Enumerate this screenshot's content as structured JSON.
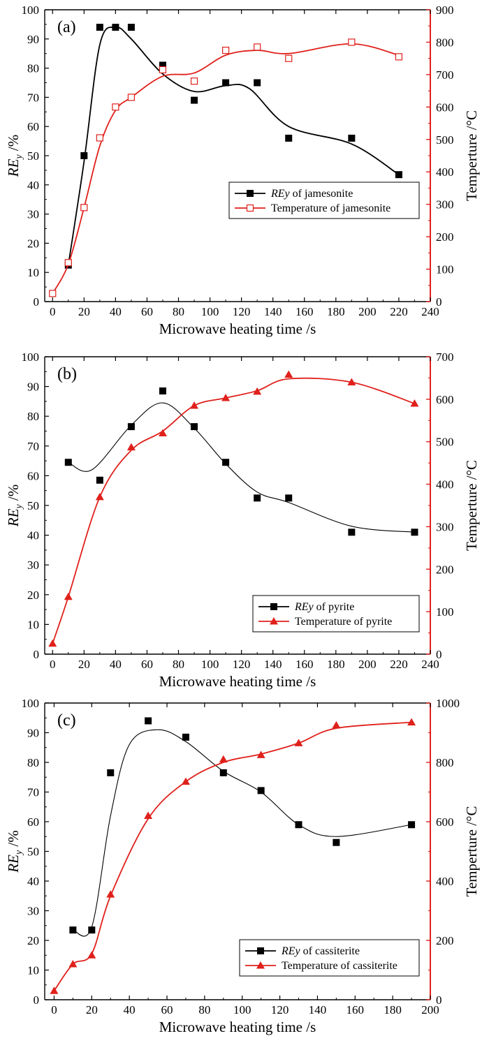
{
  "chart_data": [
    {
      "type": "line",
      "panel_label": "(a)",
      "xlabel": "Microwave heating time /s",
      "ylabel_left": {
        "main": "RE",
        "sub": "y",
        "rest": " /%"
      },
      "ylabel_right": "Temperture /°C",
      "xlim": [
        -5,
        240
      ],
      "xticks": [
        0,
        20,
        40,
        60,
        80,
        100,
        120,
        140,
        160,
        180,
        200,
        220,
        240
      ],
      "ylim_left": [
        0,
        100
      ],
      "yticks_left": [
        0,
        10,
        20,
        30,
        40,
        50,
        60,
        70,
        80,
        90,
        100
      ],
      "ylim_right": [
        0,
        900
      ],
      "yticks_right": [
        0,
        100,
        200,
        300,
        400,
        500,
        600,
        700,
        800,
        900
      ],
      "legend_position": "bottom-right",
      "colors": {
        "left_axis": "#000000",
        "right_axis": "#e0201b"
      },
      "series": [
        {
          "name": "REy of jamesonite",
          "legend": {
            "italic": "REy",
            "rest": " of jamesonite"
          },
          "axis": "left",
          "color": "#000000",
          "marker": "square",
          "x": [
            10,
            20,
            30,
            40,
            50,
            70,
            90,
            110,
            130,
            150,
            190,
            220
          ],
          "y": [
            12.5,
            50,
            94,
            94,
            94,
            81,
            69,
            75,
            75,
            56,
            56,
            43.5
          ],
          "curve": [
            [
              10,
              12.5
            ],
            [
              20,
              48
            ],
            [
              30,
              88
            ],
            [
              40,
              94
            ],
            [
              50,
              90
            ],
            [
              70,
              78
            ],
            [
              90,
              72
            ],
            [
              110,
              74
            ],
            [
              125,
              73
            ],
            [
              150,
              60
            ],
            [
              190,
              54
            ],
            [
              220,
              43.5
            ]
          ]
        },
        {
          "name": "Temperature of jamesonite",
          "legend": {
            "italic": "",
            "rest": "Temperature of jamesonite"
          },
          "axis": "right",
          "color": "#e0201b",
          "marker": "square-open",
          "x": [
            0,
            10,
            20,
            30,
            40,
            50,
            70,
            90,
            110,
            130,
            150,
            190,
            220
          ],
          "y": [
            25,
            120,
            290,
            505,
            600,
            630,
            715,
            680,
            775,
            785,
            750,
            800,
            755
          ],
          "curve": [
            [
              0,
              25
            ],
            [
              10,
              115
            ],
            [
              20,
              290
            ],
            [
              30,
              480
            ],
            [
              40,
              590
            ],
            [
              50,
              630
            ],
            [
              70,
              695
            ],
            [
              90,
              705
            ],
            [
              110,
              760
            ],
            [
              130,
              775
            ],
            [
              150,
              765
            ],
            [
              190,
              795
            ],
            [
              220,
              760
            ]
          ]
        }
      ]
    },
    {
      "type": "line",
      "panel_label": "(b)",
      "xlabel": "Microwave heating time /s",
      "ylabel_left": {
        "main": "RE",
        "sub": "y",
        "rest": " /%"
      },
      "ylabel_right": "Temperture /°C",
      "xlim": [
        -5,
        240
      ],
      "xticks": [
        0,
        20,
        40,
        60,
        80,
        100,
        120,
        140,
        160,
        180,
        200,
        220,
        240
      ],
      "ylim_left": [
        0,
        100
      ],
      "yticks_left": [
        0,
        10,
        20,
        30,
        40,
        50,
        60,
        70,
        80,
        90,
        100
      ],
      "ylim_right": [
        0,
        700
      ],
      "yticks_right": [
        0,
        100,
        200,
        300,
        400,
        500,
        600,
        700
      ],
      "legend_position": "bottom-right",
      "colors": {
        "left_axis": "#000000",
        "right_axis": "#e0201b"
      },
      "series": [
        {
          "name": "REy of pyrite",
          "legend": {
            "italic": "REy",
            "rest": " of pyrite"
          },
          "axis": "left",
          "color": "#000000",
          "marker": "square",
          "x": [
            10,
            30,
            50,
            70,
            90,
            110,
            130,
            150,
            190,
            230
          ],
          "y": [
            64.5,
            58.5,
            76.5,
            88.5,
            76.5,
            64.5,
            52.5,
            52.5,
            41,
            41
          ],
          "curve": [
            [
              10,
              64.5
            ],
            [
              25,
              62
            ],
            [
              50,
              77
            ],
            [
              70,
              84.5
            ],
            [
              90,
              76
            ],
            [
              110,
              64
            ],
            [
              130,
              54.5
            ],
            [
              150,
              51
            ],
            [
              190,
              43
            ],
            [
              230,
              41
            ]
          ]
        },
        {
          "name": "Temperature of pyrite",
          "legend": {
            "italic": "",
            "rest": "Temperature of pyrite"
          },
          "axis": "right",
          "color": "#e0201b",
          "marker": "triangle",
          "x": [
            0,
            10,
            30,
            50,
            70,
            90,
            110,
            130,
            150,
            190,
            230
          ],
          "y": [
            25,
            135,
            370,
            487,
            520,
            585,
            603,
            618,
            658,
            640,
            590
          ],
          "curve": [
            [
              0,
              25
            ],
            [
              10,
              135
            ],
            [
              30,
              370
            ],
            [
              50,
              480
            ],
            [
              70,
              525
            ],
            [
              90,
              585
            ],
            [
              110,
              603
            ],
            [
              130,
              620
            ],
            [
              150,
              648
            ],
            [
              190,
              640
            ],
            [
              230,
              590
            ]
          ]
        }
      ]
    },
    {
      "type": "line",
      "panel_label": "(c)",
      "xlabel": "Microwave heating time /s",
      "ylabel_left": {
        "main": "RE",
        "sub": "y",
        "rest": " /%"
      },
      "ylabel_right": "Temperture /°C",
      "xlim": [
        -5,
        200
      ],
      "xticks": [
        0,
        20,
        40,
        60,
        80,
        100,
        120,
        140,
        160,
        180,
        200
      ],
      "ylim_left": [
        0,
        100
      ],
      "yticks_left": [
        0,
        10,
        20,
        30,
        40,
        50,
        60,
        70,
        80,
        90,
        100
      ],
      "ylim_right": [
        0,
        1000
      ],
      "yticks_right": [
        0,
        200,
        400,
        600,
        800,
        1000
      ],
      "legend_position": "bottom-right",
      "colors": {
        "left_axis": "#000000",
        "right_axis": "#e0201b"
      },
      "series": [
        {
          "name": "REy of cassiterite",
          "legend": {
            "italic": "REy",
            "rest": " of cassiterite"
          },
          "axis": "left",
          "color": "#000000",
          "marker": "square",
          "x": [
            10,
            20,
            30,
            50,
            70,
            90,
            110,
            130,
            150,
            190
          ],
          "y": [
            23.5,
            23.5,
            76.5,
            94,
            88.5,
            76.5,
            70.5,
            59,
            53,
            59
          ],
          "curve": [
            [
              10,
              23.5
            ],
            [
              20,
              24.5
            ],
            [
              30,
              62
            ],
            [
              40,
              86
            ],
            [
              55,
              91
            ],
            [
              70,
              87
            ],
            [
              90,
              77
            ],
            [
              110,
              70
            ],
            [
              130,
              59
            ],
            [
              150,
              55
            ],
            [
              190,
              59
            ]
          ]
        },
        {
          "name": "Temperature of cassiterite",
          "legend": {
            "italic": "",
            "rest": "Temperature of cassiterite"
          },
          "axis": "right",
          "color": "#e0201b",
          "marker": "triangle",
          "x": [
            0,
            10,
            20,
            30,
            50,
            70,
            90,
            110,
            130,
            150,
            190
          ],
          "y": [
            30,
            120,
            150,
            355,
            620,
            735,
            810,
            825,
            865,
            925,
            935
          ],
          "curve": [
            [
              0,
              30
            ],
            [
              10,
              120
            ],
            [
              20,
              155
            ],
            [
              30,
              350
            ],
            [
              50,
              610
            ],
            [
              70,
              735
            ],
            [
              90,
              800
            ],
            [
              110,
              828
            ],
            [
              130,
              865
            ],
            [
              150,
              915
            ],
            [
              190,
              935
            ]
          ]
        }
      ]
    }
  ]
}
